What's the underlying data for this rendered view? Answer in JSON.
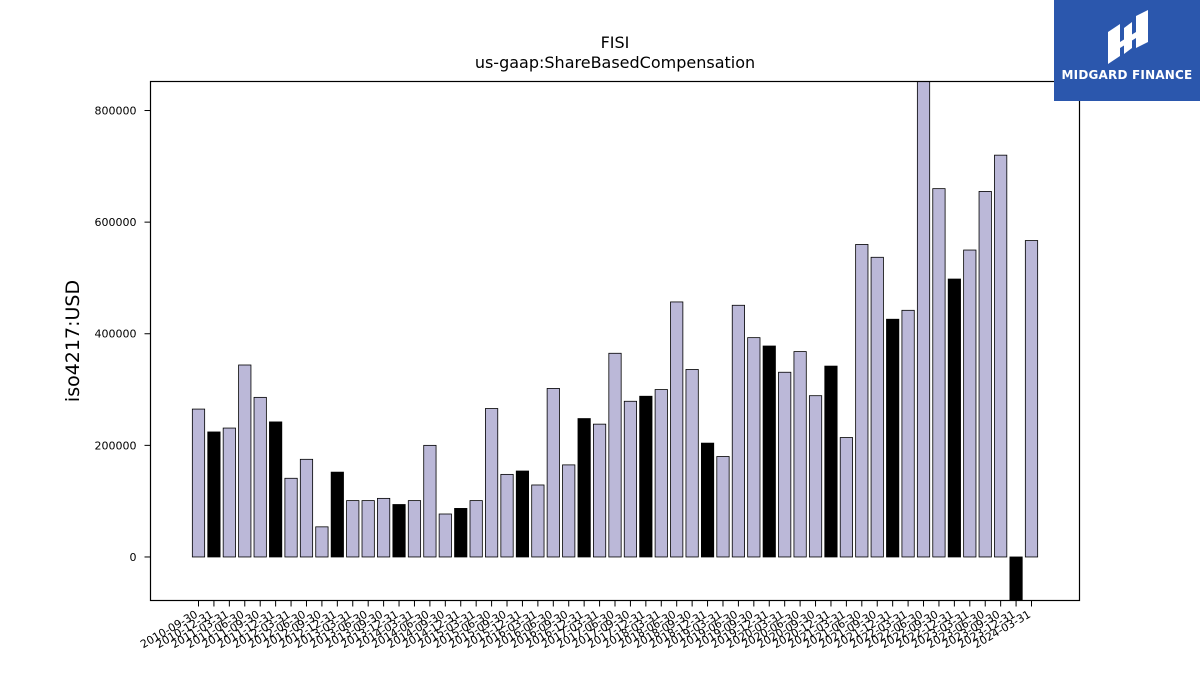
{
  "logo": {
    "text": "MIDGARD FINANCE",
    "icon": "midgard-logo-icon",
    "background": "#2b57ad"
  },
  "colors": {
    "bar_default": "#bbb8d8",
    "bar_highlight": "#000000",
    "axis": "#000000"
  },
  "chart_data": {
    "type": "bar",
    "title": "FISI",
    "subtitle": "us-gaap:ShareBasedCompensation",
    "xlabel": "",
    "ylabel": "iso4217:USD",
    "ylim": [
      -78000,
      852000
    ],
    "yticks": [
      0,
      200000,
      400000,
      600000,
      800000
    ],
    "grid": false,
    "legend": "none",
    "categories": [
      "2010-09-30",
      "2010-12-31",
      "2011-03-31",
      "2011-06-30",
      "2011-09-30",
      "2011-12-31",
      "2012-03-31",
      "2012-06-30",
      "2012-09-30",
      "2012-12-31",
      "2013-03-31",
      "2013-06-30",
      "2013-09-30",
      "2013-12-31",
      "2014-03-31",
      "2014-06-30",
      "2014-09-30",
      "2014-12-31",
      "2015-03-31",
      "2015-06-30",
      "2015-09-30",
      "2015-12-31",
      "2016-03-31",
      "2016-06-30",
      "2016-09-30",
      "2016-12-31",
      "2017-03-31",
      "2017-06-30",
      "2017-09-30",
      "2017-12-31",
      "2018-03-31",
      "2018-06-30",
      "2018-09-30",
      "2018-12-31",
      "2019-03-31",
      "2019-06-30",
      "2019-09-30",
      "2019-12-31",
      "2020-03-31",
      "2020-06-30",
      "2020-09-30",
      "2020-12-31",
      "2021-03-31",
      "2021-06-30",
      "2021-09-30",
      "2021-12-31",
      "2022-03-31",
      "2022-06-30",
      "2022-09-30",
      "2022-12-31",
      "2023-03-31",
      "2023-06-30",
      "2023-09-30",
      "2023-12-31",
      "2024-03-31"
    ],
    "values": [
      265000,
      224000,
      231000,
      344000,
      286000,
      242000,
      141000,
      175000,
      54000,
      152000,
      101000,
      101000,
      105000,
      94000,
      101000,
      200000,
      77000,
      87000,
      101000,
      266000,
      148000,
      154000,
      129000,
      302000,
      165000,
      248000,
      238000,
      365000,
      279000,
      288000,
      300000,
      457000,
      336000,
      204000,
      180000,
      451000,
      393000,
      378000,
      331000,
      368000,
      289000,
      342000,
      214000,
      560000,
      537000,
      426000,
      442000,
      860000,
      660000,
      498000,
      550000,
      655000,
      720000,
      -78000,
      567000
    ],
    "highlighted": [
      false,
      true,
      false,
      false,
      false,
      true,
      false,
      false,
      false,
      true,
      false,
      false,
      false,
      true,
      false,
      false,
      false,
      true,
      false,
      false,
      false,
      true,
      false,
      false,
      false,
      true,
      false,
      false,
      false,
      true,
      false,
      false,
      false,
      true,
      false,
      false,
      false,
      true,
      false,
      false,
      false,
      true,
      false,
      false,
      false,
      true,
      false,
      false,
      false,
      true,
      false,
      false,
      false,
      true,
      false
    ]
  }
}
